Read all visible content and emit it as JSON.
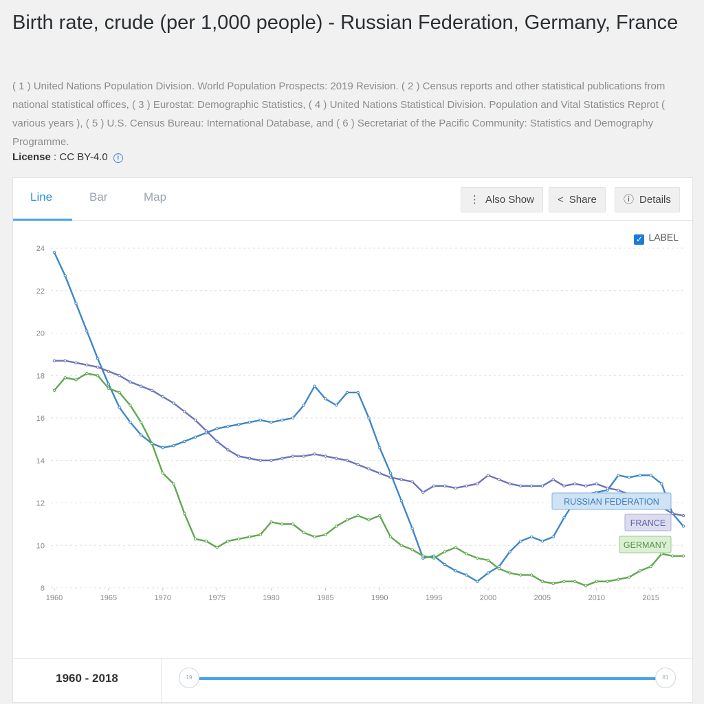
{
  "page": {
    "title": "Birth rate, crude (per 1,000 people) - Russian Federation, Germany, France",
    "sources": "( 1 ) United Nations Population Division. World Population Prospects: 2019 Revision. ( 2 ) Census reports and other statistical publications from national statistical offices, ( 3 ) Eurostat: Demographic Statistics, ( 4 ) United Nations Statistical Division. Population and Vital Statistics Reprot ( various years ), ( 5 ) U.S. Census Bureau: International Database, and ( 6 ) Secretariat of the Pacific Community: Statistics and Demography Programme.",
    "license_label": "License",
    "license_value": " : CC BY-4.0"
  },
  "tabs": [
    "Line",
    "Bar",
    "Map"
  ],
  "toolbar": {
    "also_show": "Also Show",
    "share": "Share",
    "details": "Details"
  },
  "label_toggle": {
    "text": "LABEL",
    "checked": true
  },
  "slider": {
    "range": "1960 - 2018",
    "start_handle": "19",
    "end_handle": "81"
  },
  "colors": {
    "russia": "#3d87c8",
    "france": "#6b74b8",
    "germany": "#5fa84f",
    "accent": "#2a8fdc"
  },
  "chart_data": {
    "type": "line",
    "ylim": [
      8,
      24
    ],
    "yticks": [
      8,
      10,
      12,
      14,
      16,
      18,
      20,
      22,
      24
    ],
    "xlim": [
      1960,
      2018
    ],
    "xticks": [
      1960,
      1965,
      1970,
      1975,
      1980,
      1985,
      1990,
      1995,
      2000,
      2005,
      2010,
      2015
    ],
    "grid": true,
    "x_start": 1960,
    "series": [
      {
        "name": "RUSSIAN FEDERATION",
        "color": "#3d87c8",
        "values": [
          23.8,
          22.7,
          21.4,
          20.1,
          18.8,
          17.6,
          16.5,
          15.8,
          15.2,
          14.8,
          14.6,
          14.7,
          14.9,
          15.1,
          15.3,
          15.5,
          15.6,
          15.7,
          15.8,
          15.9,
          15.8,
          15.9,
          16.0,
          16.6,
          17.5,
          16.9,
          16.6,
          17.2,
          17.2,
          16.0,
          14.6,
          13.4,
          12.1,
          10.8,
          9.4,
          9.5,
          9.1,
          8.8,
          8.6,
          8.3,
          8.7,
          9.0,
          9.7,
          10.2,
          10.4,
          10.2,
          10.4,
          11.3,
          12.1,
          12.4,
          12.5,
          12.6,
          13.3,
          13.2,
          13.3,
          13.3,
          12.9,
          11.5,
          10.9
        ],
        "label_badge": "RUSSIAN FEDERATION"
      },
      {
        "name": "FRANCE",
        "color": "#6b74b8",
        "values": [
          18.7,
          18.7,
          18.6,
          18.5,
          18.4,
          18.2,
          18.0,
          17.7,
          17.5,
          17.3,
          17.0,
          16.7,
          16.3,
          15.9,
          15.4,
          14.9,
          14.5,
          14.2,
          14.1,
          14.0,
          14.0,
          14.1,
          14.2,
          14.2,
          14.3,
          14.2,
          14.1,
          14.0,
          13.8,
          13.6,
          13.4,
          13.2,
          13.1,
          13.0,
          12.5,
          12.8,
          12.8,
          12.7,
          12.8,
          12.9,
          13.3,
          13.1,
          12.9,
          12.8,
          12.8,
          12.8,
          13.1,
          12.8,
          12.9,
          12.8,
          12.9,
          12.7,
          12.6,
          12.4,
          12.4,
          12.0,
          11.8,
          11.5,
          11.4
        ],
        "label_badge": "FRANCE"
      },
      {
        "name": "GERMANY",
        "color": "#5fa84f",
        "values": [
          17.3,
          17.9,
          17.8,
          18.1,
          18.0,
          17.4,
          17.2,
          16.6,
          15.8,
          14.8,
          13.4,
          12.9,
          11.5,
          10.3,
          10.2,
          9.9,
          10.2,
          10.3,
          10.4,
          10.5,
          11.1,
          11.0,
          11.0,
          10.6,
          10.4,
          10.5,
          10.9,
          11.2,
          11.4,
          11.2,
          11.4,
          10.4,
          10.0,
          9.8,
          9.5,
          9.4,
          9.7,
          9.9,
          9.6,
          9.4,
          9.3,
          8.9,
          8.7,
          8.6,
          8.6,
          8.3,
          8.2,
          8.3,
          8.3,
          8.1,
          8.3,
          8.3,
          8.4,
          8.5,
          8.8,
          9.0,
          9.6,
          9.5,
          9.5
        ],
        "label_badge": "GERMANY"
      }
    ]
  }
}
